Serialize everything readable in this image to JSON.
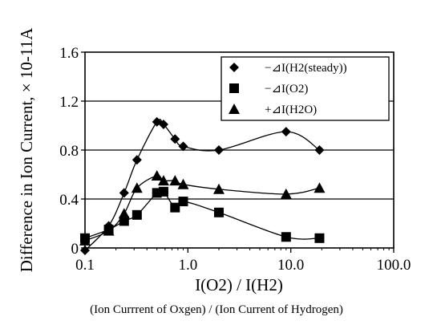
{
  "chart_data": {
    "type": "line",
    "xscale": "log",
    "xlim": [
      0.1,
      100.0
    ],
    "ylim": [
      0,
      1.6
    ],
    "grid": "horizontal",
    "legend_position": "top-right",
    "xlabel": "I(O2) / I(H2)",
    "ylabel": "Difference in Ion Current, × 10-11A",
    "caption": "(Ion Currrent of Oxgen) / (Ion Current of Hydrogen)",
    "xtick_labels": [
      "0.1",
      "1.0",
      "10.0",
      "100.0"
    ],
    "ytick_labels": [
      "0",
      "0.4",
      "0.8",
      "1.2",
      "1.6"
    ],
    "series": [
      {
        "name": "−⊿I(H2(steady))",
        "marker": "diamond",
        "points": [
          [
            0.1,
            -0.02
          ],
          [
            0.17,
            0.18
          ],
          [
            0.24,
            0.45
          ],
          [
            0.32,
            0.72
          ],
          [
            0.5,
            1.03
          ],
          [
            0.58,
            1.01
          ],
          [
            0.75,
            0.89
          ],
          [
            0.9,
            0.83
          ],
          [
            2.0,
            0.8
          ],
          [
            9.0,
            0.95
          ],
          [
            19.0,
            0.8
          ]
        ]
      },
      {
        "name": "−⊿I(O2)",
        "marker": "square",
        "points": [
          [
            0.1,
            0.08
          ],
          [
            0.17,
            0.15
          ],
          [
            0.24,
            0.22
          ],
          [
            0.32,
            0.27
          ],
          [
            0.5,
            0.45
          ],
          [
            0.58,
            0.46
          ],
          [
            0.75,
            0.33
          ],
          [
            0.9,
            0.38
          ],
          [
            2.0,
            0.29
          ],
          [
            9.0,
            0.09
          ],
          [
            19.0,
            0.08
          ]
        ]
      },
      {
        "name": "+⊿I(H2O)",
        "marker": "triangle",
        "points": [
          [
            0.1,
            0.06
          ],
          [
            0.17,
            0.14
          ],
          [
            0.24,
            0.28
          ],
          [
            0.32,
            0.49
          ],
          [
            0.5,
            0.59
          ],
          [
            0.58,
            0.55
          ],
          [
            0.75,
            0.55
          ],
          [
            0.9,
            0.52
          ],
          [
            2.0,
            0.48
          ],
          [
            9.0,
            0.44
          ],
          [
            19.0,
            0.49
          ]
        ]
      }
    ]
  }
}
